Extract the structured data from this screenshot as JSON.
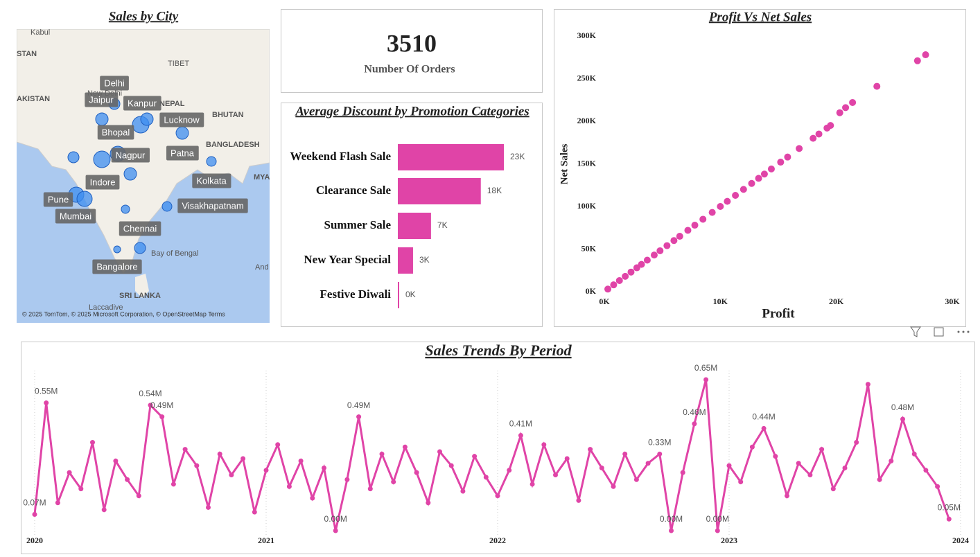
{
  "map": {
    "title": "Sales by City",
    "places": [
      "Kabul",
      "STAN",
      "AKISTAN",
      "New Delhi",
      "NEPAL",
      "TIBET",
      "BHUTAN",
      "BANGLADESH",
      "MYA",
      "Bay of Bengal",
      "SRI LANKA",
      "Laccadive",
      "And"
    ],
    "cities": [
      "Delhi",
      "Jaipur",
      "Kanpur",
      "Lucknow",
      "Bhopal",
      "Patna",
      "Nagpur",
      "Indore",
      "Kolkata",
      "Pune",
      "Mumbai",
      "Visakhapatnam",
      "Chennai",
      "Bangalore"
    ],
    "attribution": "© 2025 TomTom, © 2025 Microsoft Corporation, © OpenStreetMap  Terms"
  },
  "kpi": {
    "value": 3510,
    "label": "Number Of Orders"
  },
  "chart_data": [
    {
      "type": "bar",
      "title": "Average Discount by Promotion Categories",
      "orientation": "horizontal",
      "categories": [
        "Weekend Flash Sale",
        "Clearance Sale",
        "Summer Sale",
        "New Year Special",
        "Festive Diwali"
      ],
      "values": [
        23000,
        18000,
        7200,
        3300,
        150
      ],
      "value_labels": [
        "23K",
        "18K",
        "7K",
        "3K",
        "0K"
      ],
      "color": "#e044a7"
    },
    {
      "type": "scatter",
      "title": "Profit Vs Net Sales",
      "x_label": "Profit",
      "y_label": "Net Sales",
      "color": "#e044a7",
      "x": [
        300,
        800,
        1300,
        1800,
        2300,
        2800,
        3200,
        3700,
        4300,
        4800,
        5400,
        6000,
        6500,
        7200,
        7800,
        8500,
        9300,
        10000,
        10600,
        11300,
        12000,
        12700,
        13300,
        13800,
        14400,
        15200,
        15800,
        16800,
        18000,
        18500,
        19200,
        19500,
        20300,
        20800,
        21400,
        23500,
        27000,
        27700
      ],
      "y": [
        3000,
        8000,
        13000,
        18000,
        23000,
        28000,
        32000,
        37000,
        43000,
        48000,
        54000,
        60000,
        65000,
        72000,
        78000,
        85000,
        93000,
        100000,
        106000,
        113000,
        120000,
        127000,
        133000,
        138000,
        144000,
        152000,
        158000,
        168000,
        180000,
        185000,
        192000,
        195000,
        210000,
        216000,
        222000,
        241000,
        271000,
        278000
      ],
      "xlim": [
        0,
        30000
      ],
      "ylim": [
        0,
        300000
      ],
      "xticks": [
        {
          "value": 0,
          "label": "0K"
        },
        {
          "value": 10000,
          "label": "10K"
        },
        {
          "value": 20000,
          "label": "20K"
        },
        {
          "value": 30000,
          "label": "30K"
        }
      ],
      "yticks": [
        {
          "value": 0,
          "label": "0K"
        },
        {
          "value": 50000,
          "label": "50K"
        },
        {
          "value": 100000,
          "label": "100K"
        },
        {
          "value": 150000,
          "label": "150K"
        },
        {
          "value": 200000,
          "label": "200K"
        },
        {
          "value": 250000,
          "label": "250K"
        },
        {
          "value": 300000,
          "label": "300K"
        }
      ]
    },
    {
      "type": "line",
      "title": "Sales Trends By Period",
      "color": "#e044a7",
      "grid": true,
      "x": [
        2020,
        2020.05,
        2020.1,
        2020.15,
        2020.2,
        2020.25,
        2020.3,
        2020.35,
        2020.4,
        2020.45,
        2020.5,
        2020.55,
        2020.6,
        2020.65,
        2020.7,
        2020.75,
        2020.8,
        2020.85,
        2020.9,
        2020.95,
        2021,
        2021.05,
        2021.1,
        2021.15,
        2021.2,
        2021.25,
        2021.3,
        2021.35,
        2021.4,
        2021.45,
        2021.5,
        2021.55,
        2021.6,
        2021.65,
        2021.7,
        2021.75,
        2021.8,
        2021.85,
        2021.9,
        2021.95,
        2022,
        2022.05,
        2022.1,
        2022.15,
        2022.2,
        2022.25,
        2022.3,
        2022.35,
        2022.4,
        2022.45,
        2022.5,
        2022.55,
        2022.6,
        2022.65,
        2022.7,
        2022.75,
        2022.8,
        2022.85,
        2022.9,
        2022.95,
        2023,
        2023.05,
        2023.1,
        2023.15,
        2023.2,
        2023.25,
        2023.3,
        2023.35,
        2023.4,
        2023.45,
        2023.5,
        2023.55,
        2023.6,
        2023.65,
        2023.7,
        2023.75,
        2023.8,
        2023.85,
        2023.9,
        2023.95
      ],
      "values": [
        0.07,
        0.55,
        0.12,
        0.25,
        0.18,
        0.38,
        0.09,
        0.3,
        0.22,
        0.15,
        0.54,
        0.49,
        0.2,
        0.35,
        0.28,
        0.1,
        0.33,
        0.24,
        0.31,
        0.08,
        0.26,
        0.37,
        0.19,
        0.3,
        0.14,
        0.27,
        0.0,
        0.22,
        0.49,
        0.18,
        0.33,
        0.21,
        0.36,
        0.25,
        0.12,
        0.34,
        0.28,
        0.17,
        0.32,
        0.23,
        0.15,
        0.26,
        0.41,
        0.2,
        0.37,
        0.24,
        0.31,
        0.13,
        0.35,
        0.27,
        0.19,
        0.33,
        0.22,
        0.29,
        0.33,
        0.0,
        0.25,
        0.46,
        0.65,
        0.0,
        0.28,
        0.21,
        0.36,
        0.44,
        0.32,
        0.15,
        0.29,
        0.24,
        0.35,
        0.18,
        0.27,
        0.38,
        0.63,
        0.22,
        0.3,
        0.48,
        0.33,
        0.26,
        0.19,
        0.05
      ],
      "value_labels": [
        "0.07M",
        "0.55M",
        null,
        null,
        null,
        null,
        null,
        null,
        null,
        null,
        "0.54M",
        "0.49M",
        null,
        null,
        null,
        null,
        null,
        null,
        null,
        null,
        null,
        null,
        null,
        null,
        null,
        null,
        "0.00M",
        null,
        "0.49M",
        null,
        null,
        null,
        null,
        null,
        null,
        null,
        null,
        null,
        null,
        null,
        null,
        null,
        "0.41M",
        null,
        null,
        null,
        null,
        null,
        null,
        null,
        null,
        null,
        null,
        null,
        "0.33M",
        "0.00M",
        null,
        "0.46M",
        "0.65M",
        "0.00M",
        null,
        null,
        null,
        "0.44M",
        null,
        null,
        null,
        null,
        null,
        null,
        null,
        null,
        null,
        null,
        null,
        "0.48M",
        null,
        null,
        null,
        "0.05M"
      ],
      "xlim": [
        2020,
        2024
      ],
      "xticks": [
        2020,
        2021,
        2022,
        2023,
        2024
      ]
    }
  ]
}
